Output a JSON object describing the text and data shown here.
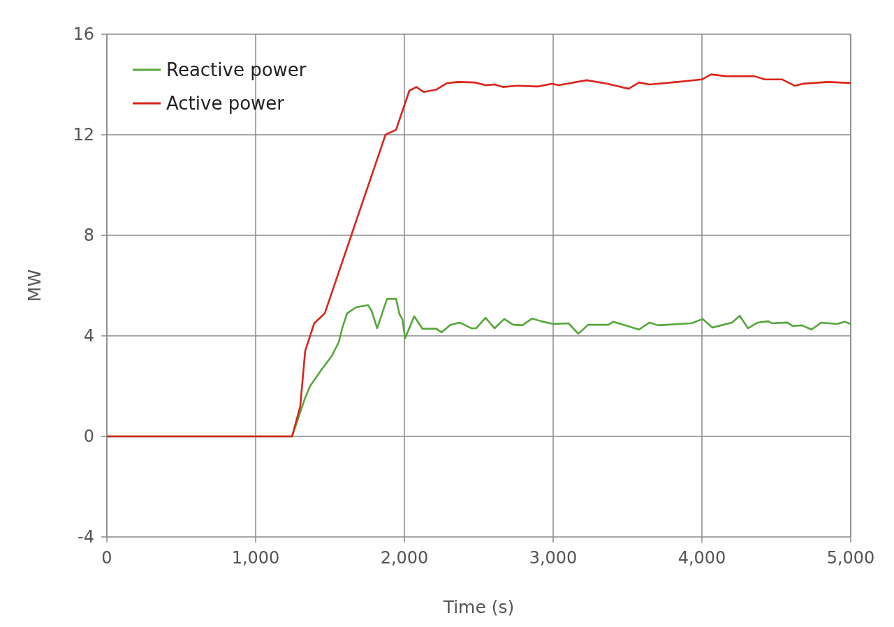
{
  "chart_data": {
    "type": "line",
    "xlabel": "Time (s)",
    "ylabel": "MW",
    "xlim": [
      0,
      5000
    ],
    "xticks": [
      {
        "value": 0,
        "label": "0"
      },
      {
        "value": 1000,
        "label": "1,000"
      },
      {
        "value": 2000,
        "label": "2,000"
      },
      {
        "value": 3000,
        "label": "3,000"
      },
      {
        "value": 4000,
        "label": "4,000"
      },
      {
        "value": 5000,
        "label": "5,000"
      }
    ],
    "ylim": [
      -4,
      16
    ],
    "yticks": [
      -4,
      0,
      4,
      8,
      12,
      16
    ],
    "grid": true,
    "legend": "top left",
    "line_style": "solid",
    "series": [
      {
        "name": "Reactive power",
        "color": "#56a63d",
        "x": [
          0,
          1245,
          1329,
          1366,
          1441,
          1512,
          1559,
          1582,
          1615,
          1676,
          1756,
          1779,
          1817,
          1883,
          1944,
          1967,
          1986,
          2005,
          2066,
          2122,
          2216,
          2249,
          2310,
          2371,
          2451,
          2483,
          2545,
          2606,
          2671,
          2732,
          2793,
          2859,
          2920,
          3000,
          3103,
          3169,
          3235,
          3371,
          3404,
          3577,
          3648,
          3704,
          3930,
          4005,
          4070,
          4202,
          4254,
          4310,
          4376,
          4446,
          4469,
          4573,
          4610,
          4671,
          4737,
          4803,
          4906,
          4962,
          5000
        ],
        "values": [
          0,
          0,
          1.47,
          2.0,
          2.64,
          3.2,
          3.75,
          4.3,
          4.9,
          5.14,
          5.22,
          5.0,
          4.3,
          5.47,
          5.47,
          4.86,
          4.67,
          3.9,
          4.78,
          4.28,
          4.28,
          4.14,
          4.44,
          4.53,
          4.3,
          4.3,
          4.72,
          4.3,
          4.67,
          4.44,
          4.42,
          4.69,
          4.58,
          4.47,
          4.5,
          4.08,
          4.44,
          4.44,
          4.56,
          4.25,
          4.53,
          4.42,
          4.5,
          4.67,
          4.33,
          4.53,
          4.8,
          4.3,
          4.53,
          4.58,
          4.5,
          4.53,
          4.39,
          4.42,
          4.25,
          4.53,
          4.47,
          4.56,
          4.47
        ]
      },
      {
        "name": "Active power",
        "color": "#d9251c",
        "x": [
          0,
          1245,
          1300,
          1333,
          1394,
          1465,
          1873,
          1944,
          2033,
          2080,
          2131,
          2216,
          2286,
          2357,
          2474,
          2545,
          2606,
          2662,
          2756,
          2897,
          2991,
          3038,
          3225,
          3366,
          3507,
          3577,
          3648,
          3836,
          4000,
          4061,
          4164,
          4352,
          4423,
          4540,
          4624,
          4681,
          4751,
          4845,
          5000
        ],
        "values": [
          0,
          0,
          1.2,
          3.4,
          4.5,
          4.9,
          12.0,
          12.2,
          13.75,
          13.9,
          13.7,
          13.8,
          14.05,
          14.1,
          14.08,
          13.97,
          14.0,
          13.9,
          13.95,
          13.92,
          14.03,
          13.97,
          14.17,
          14.03,
          13.83,
          14.08,
          14.0,
          14.1,
          14.2,
          14.4,
          14.33,
          14.33,
          14.2,
          14.2,
          13.95,
          14.03,
          14.06,
          14.1,
          14.06
        ]
      }
    ]
  }
}
